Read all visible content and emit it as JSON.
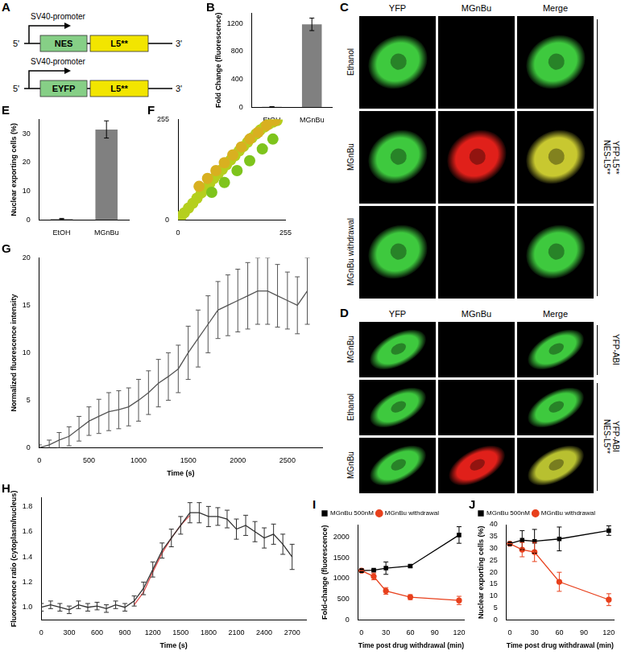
{
  "figure": [
    {
      "panel": "A",
      "constructs": [
        {
          "promoter": "SV40-promoter",
          "ends": [
            "5'",
            "3'"
          ],
          "parts": [
            {
              "label": "NES",
              "color": "#86cf86"
            },
            {
              "label": "L5**",
              "color": "#f2e500"
            }
          ]
        },
        {
          "promoter": "SV40-promoter",
          "ends": [
            "5'",
            "3'"
          ],
          "parts": [
            {
              "label": "EYFP",
              "color": "#86cf86"
            },
            {
              "label": "L5**",
              "color": "#f2e500"
            }
          ]
        }
      ]
    },
    {
      "panel": "C",
      "columns": [
        "YFP",
        "MGnBu",
        "Merge"
      ],
      "groups": [
        {
          "lines": [
            "YFP-L5**",
            "NES-L5**"
          ],
          "rows": [
            {
              "label": "Ethanol",
              "colors": [
                "#3ec93e",
                null,
                "#3ec93e"
              ]
            },
            {
              "label": "MGnBu",
              "colors": [
                "#3ec93e",
                "#e0201a",
                "#c8c830"
              ]
            },
            {
              "label": "MGnBu withdrawal",
              "colors": [
                "#3ec93e",
                null,
                "#3ec93e"
              ]
            }
          ]
        }
      ]
    },
    {
      "panel": "D",
      "columns": [
        "YFP",
        "MGnBu",
        "Merge"
      ],
      "groups": [
        {
          "lines": [
            "YFP-ABI"
          ],
          "rows": [
            {
              "label": "MGnBu",
              "colors": [
                "#3ec93e",
                null,
                "#3ec93e"
              ]
            }
          ]
        },
        {
          "lines": [
            "YFP-ABI",
            "NES-L5**"
          ],
          "rows": [
            {
              "label": "Ethanol",
              "colors": [
                "#3ec93e",
                null,
                "#3ec93e"
              ]
            },
            {
              "label": "MGnBu",
              "colors": [
                "#3ec93e",
                "#e0201a",
                "#b8c030"
              ]
            }
          ]
        }
      ]
    }
  ],
  "chart_data": [
    {
      "panel": "B",
      "type": "bar",
      "categories": [
        "EtOH",
        "MGnBu"
      ],
      "values": [
        5,
        1190
      ],
      "errors": [
        2,
        90
      ],
      "color": "#808080",
      "ylabel": "Fold Change (fluorescence)",
      "ylim": [
        0,
        1350
      ],
      "yticks": [
        0,
        400,
        800,
        1200
      ],
      "grid": false
    },
    {
      "panel": "E",
      "type": "bar",
      "categories": [
        "EtOH",
        "MGnBu"
      ],
      "values": [
        0.3,
        31.5
      ],
      "errors": [
        0.2,
        3
      ],
      "color": "#808080",
      "ylabel": "Nuclear exporting cells (%)",
      "ylim": [
        0,
        35
      ],
      "yticks": [
        0,
        10,
        20,
        30
      ],
      "grid": false
    },
    {
      "panel": "F",
      "type": "scatter",
      "x": [
        8,
        15,
        25,
        35,
        45,
        55,
        65,
        75,
        85,
        95,
        105,
        115,
        125,
        135,
        145,
        155,
        165,
        175,
        185,
        195,
        205,
        215,
        225,
        235,
        50,
        70,
        90,
        110,
        130,
        150,
        170,
        190,
        210,
        230,
        80,
        110,
        140,
        170,
        200,
        225
      ],
      "values": [
        10,
        18,
        30,
        42,
        55,
        68,
        80,
        92,
        105,
        117,
        128,
        140,
        152,
        163,
        175,
        186,
        197,
        208,
        218,
        228,
        236,
        243,
        248,
        252,
        85,
        105,
        125,
        145,
        165,
        185,
        205,
        222,
        240,
        252,
        70,
        95,
        125,
        150,
        180,
        205
      ],
      "colors": [
        "#b5cf1e",
        "#b5cf1e",
        "#b5cf1e",
        "#b5cf1e",
        "#b5cf1e",
        "#b5cf1e",
        "#b5cf1e",
        "#b5cf1e",
        "#b5cf1e",
        "#b5cf1e",
        "#b5cf1e",
        "#b5cf1e",
        "#b5cf1e",
        "#b5cf1e",
        "#b5cf1e",
        "#b5cf1e",
        "#b5cf1e",
        "#b5cf1e",
        "#b5cf1e",
        "#b5cf1e",
        "#b5cf1e",
        "#b5cf1e",
        "#b5cf1e",
        "#b5cf1e",
        "#d8b020",
        "#d8b020",
        "#d8b020",
        "#d8b020",
        "#d8b020",
        "#d8b020",
        "#d8b020",
        "#d8b020",
        "#d8b020",
        "#d8b020",
        "#7ec41c",
        "#7ec41c",
        "#7ec41c",
        "#7ec41c",
        "#7ec41c",
        "#7ec41c"
      ],
      "xlim": [
        0,
        255
      ],
      "xticks": [
        0,
        255
      ],
      "ylim": [
        0,
        255
      ],
      "yticks": [
        0,
        255
      ],
      "grid": false
    },
    {
      "panel": "G",
      "type": "line",
      "x": [
        0,
        100,
        200,
        300,
        400,
        500,
        600,
        700,
        800,
        900,
        1000,
        1100,
        1200,
        1300,
        1400,
        1500,
        1600,
        1700,
        1800,
        1900,
        2000,
        2100,
        2200,
        2300,
        2400,
        2500,
        2600,
        2700
      ],
      "values": [
        0,
        0.3,
        0.8,
        1.2,
        2,
        2.8,
        3.3,
        3.8,
        4,
        4.3,
        5,
        5.8,
        6.8,
        7.5,
        8.3,
        10,
        11.5,
        13,
        14.5,
        15,
        15.5,
        16,
        16.5,
        16.5,
        16,
        15.5,
        15,
        16.5
      ],
      "errors": [
        0.3,
        0.5,
        0.8,
        1,
        1.3,
        1.5,
        1.8,
        2,
        2,
        2,
        2.2,
        2.3,
        2.5,
        2.5,
        2.5,
        2.8,
        3,
        3,
        3,
        3.2,
        3.3,
        3.5,
        3.5,
        3.5,
        3.3,
        3,
        3,
        3.5
      ],
      "color": "#555555",
      "xlabel": "Time (s)",
      "ylabel": "Normalized fluorescence intensity",
      "xlim": [
        0,
        2850
      ],
      "xticks": [
        0,
        500,
        1000,
        1500,
        2000,
        2500
      ],
      "ylim": [
        0,
        20
      ],
      "yticks": [
        0,
        5,
        10,
        15,
        20
      ],
      "grid": false
    },
    {
      "panel": "H",
      "type": "line",
      "series": [
        {
          "color": "#303030",
          "x": [
            0,
            100,
            200,
            300,
            400,
            500,
            600,
            700,
            800,
            900,
            1000,
            1100,
            1200,
            1300,
            1400,
            1500,
            1600,
            1700,
            1800,
            1900,
            2000,
            2100,
            2200,
            2300,
            2400,
            2500,
            2600,
            2700
          ],
          "values": [
            1.0,
            1.02,
            1.0,
            0.98,
            1.02,
            1.0,
            1.01,
            0.99,
            1.02,
            1.0,
            1.05,
            1.15,
            1.3,
            1.45,
            1.55,
            1.65,
            1.75,
            1.75,
            1.72,
            1.72,
            1.7,
            1.62,
            1.65,
            1.6,
            1.55,
            1.58,
            1.5,
            1.4
          ],
          "errors": [
            0.03,
            0.03,
            0.03,
            0.03,
            0.03,
            0.03,
            0.03,
            0.03,
            0.03,
            0.03,
            0.04,
            0.05,
            0.06,
            0.06,
            0.07,
            0.07,
            0.08,
            0.08,
            0.08,
            0.07,
            0.07,
            0.08,
            0.08,
            0.08,
            0.08,
            0.08,
            0.08,
            0.1
          ]
        },
        {
          "color": "#e05050",
          "x": [
            1000,
            1100,
            1200,
            1300,
            1400,
            1500,
            1600
          ],
          "values": [
            1.02,
            1.12,
            1.28,
            1.43,
            1.55,
            1.65,
            1.73
          ]
        }
      ],
      "xlabel": "Time (s)",
      "ylabel": "Fluorescence ratio (cytoplasm/nucleus)",
      "xlim": [
        0,
        2850
      ],
      "xticks": [
        0,
        300,
        600,
        900,
        1200,
        1500,
        1800,
        2100,
        2400,
        2700
      ],
      "ylim": [
        0.9,
        1.87
      ],
      "yticks": [
        {
          "value": 1,
          "label": "1.0"
        },
        {
          "value": 1.2,
          "label": "1.2"
        },
        {
          "value": 1.4,
          "label": "1.4"
        },
        {
          "value": 1.6,
          "label": "1.6"
        },
        {
          "value": 1.8,
          "label": "1.8"
        }
      ],
      "grid": false
    },
    {
      "panel": "I",
      "type": "line",
      "series": [
        {
          "name": "MGnBu 500nM",
          "color": "#000000",
          "marker": "square",
          "x": [
            0,
            15,
            30,
            60,
            120
          ],
          "values": [
            1190,
            1200,
            1250,
            1300,
            2050
          ],
          "errors": [
            0,
            20,
            150,
            30,
            200
          ]
        },
        {
          "name": "MGnBu withdrawal",
          "color": "#e8401c",
          "marker": "circle",
          "x": [
            0,
            15,
            30,
            60,
            120
          ],
          "values": [
            1190,
            1050,
            700,
            550,
            470
          ],
          "errors": [
            0,
            80,
            80,
            60,
            100
          ]
        }
      ],
      "xlabel": "Time post drug withdrawal (min)",
      "ylabel": "Fold-change (fluorescence)",
      "xlim": [
        -4,
        126
      ],
      "xticks": [
        0,
        30,
        60,
        90,
        120
      ],
      "ylim": [
        0,
        2300
      ],
      "yticks": [
        0,
        500,
        1000,
        1500,
        2000
      ],
      "legend": "upper left",
      "grid": false
    },
    {
      "panel": "J",
      "type": "line",
      "series": [
        {
          "name": "MGnBu 500nM",
          "color": "#000000",
          "marker": "square",
          "x": [
            0,
            15,
            30,
            60,
            120
          ],
          "values": [
            32,
            33.5,
            33,
            34,
            37.5
          ],
          "errors": [
            0,
            4,
            5,
            5,
            2
          ]
        },
        {
          "name": "MGnBu withdrawal",
          "color": "#e8401c",
          "marker": "circle",
          "x": [
            0,
            15,
            30,
            60,
            120
          ],
          "values": [
            32,
            29.5,
            28.5,
            16,
            8.5
          ],
          "errors": [
            0,
            3,
            4,
            4,
            2.5
          ]
        }
      ],
      "xlabel": "Time post drug withdrawal (min)",
      "ylabel": "Nuclear exporting cells (%)",
      "xlim": [
        -4,
        126
      ],
      "xticks": [
        0,
        30,
        60,
        90,
        120
      ],
      "ylim": [
        0,
        40
      ],
      "yticks": [
        0,
        5,
        10,
        15,
        20,
        25,
        30,
        35,
        40
      ],
      "legend": "upper left",
      "grid": false
    }
  ]
}
